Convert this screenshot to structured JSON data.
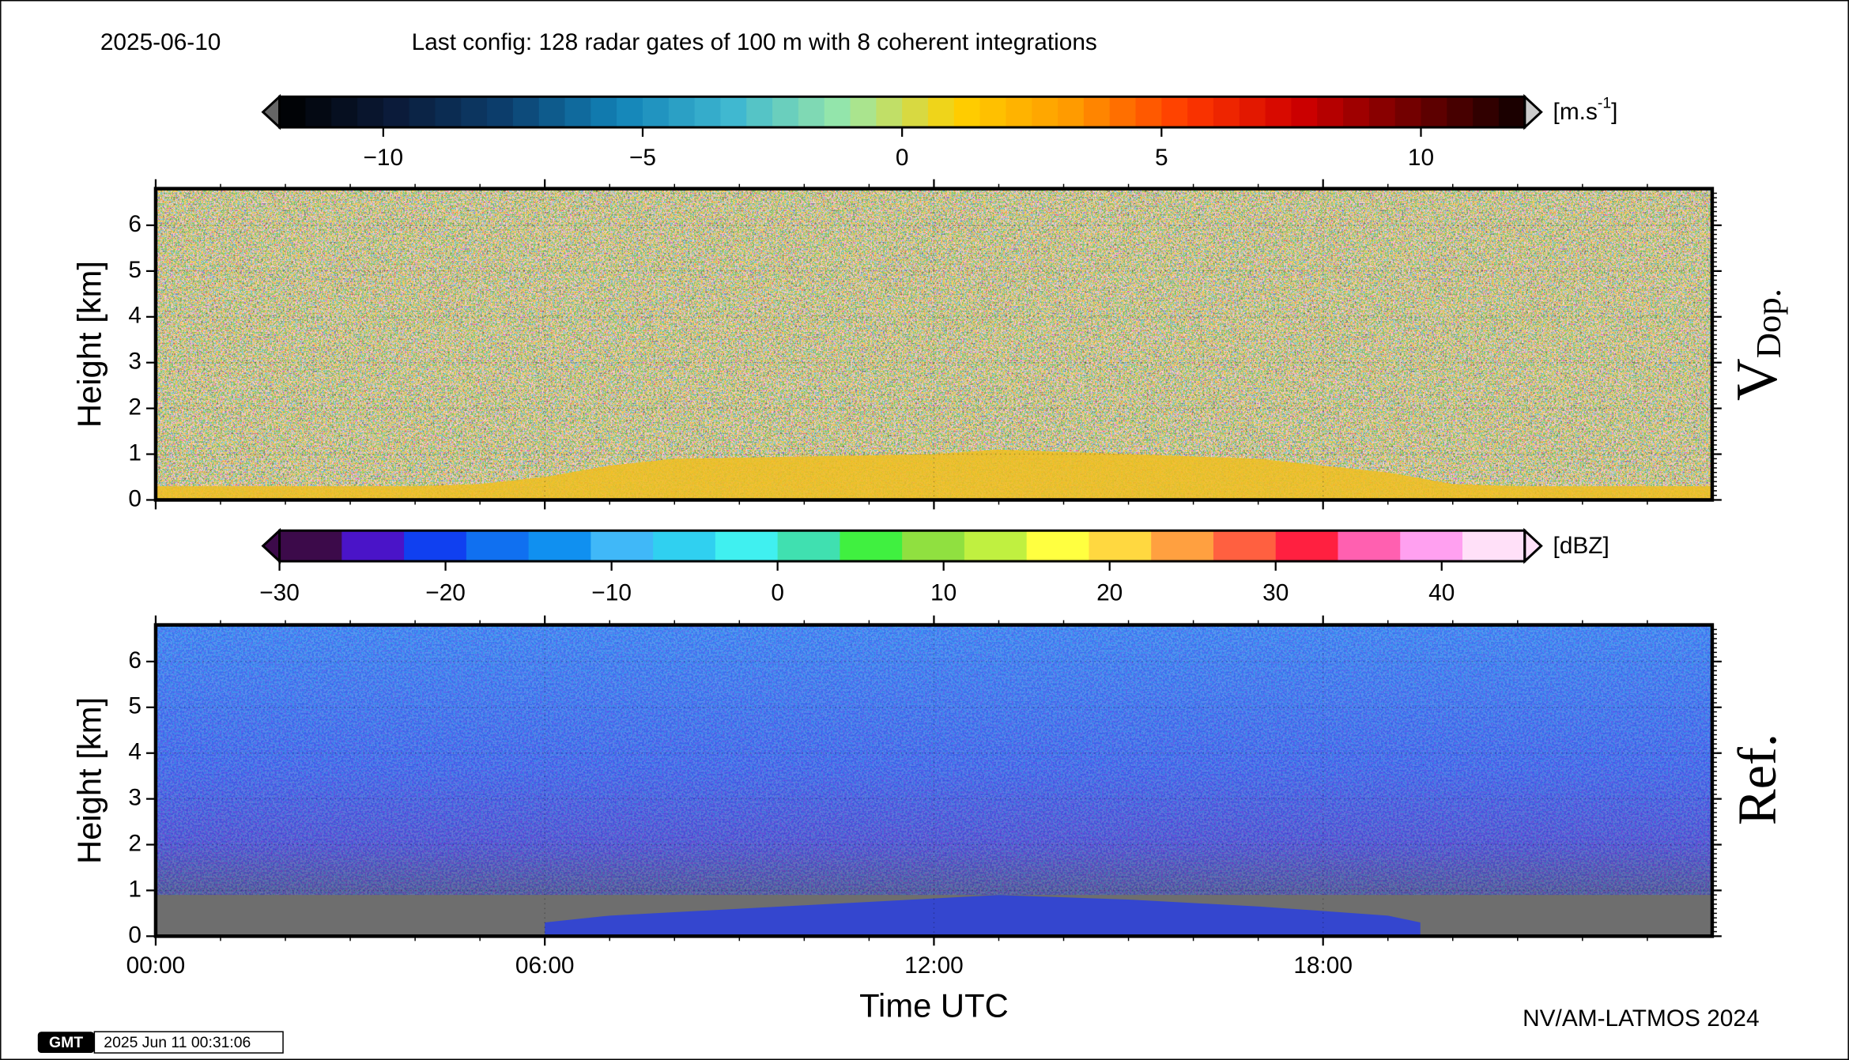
{
  "header": {
    "date": "2025-06-10",
    "config": "Last config: 128 radar gates of 100 m with 8 coherent integrations"
  },
  "chart_data": [
    {
      "type": "heatmap",
      "label": "V",
      "label_sub": "Dop.",
      "ylabel": "Height [km]",
      "ylim": [
        0,
        6.8
      ],
      "yticks": [
        0,
        1,
        2,
        3,
        4,
        5,
        6
      ],
      "xlim": [
        0,
        24
      ],
      "colorbar": {
        "unit": "[m.s",
        "unit_sup": "-1",
        "unit_end": "]",
        "lim": [
          -12,
          12
        ],
        "steps": 48,
        "colors": [
          "#000000",
          "#0b1a38",
          "#0c3f6e",
          "#1283b8",
          "#3fb8d0",
          "#9ae8a8",
          "#ffd000",
          "#ff9a00",
          "#ff3a00",
          "#d00000",
          "#700000",
          "#100000"
        ],
        "ticks": [
          {
            "value": -10,
            "label": "−10"
          },
          {
            "value": -5,
            "label": "−5"
          },
          0,
          5,
          10
        ]
      },
      "layer": {
        "color": "#f0c020",
        "x": [
          0,
          4,
          5,
          6,
          7,
          8,
          10,
          12,
          13,
          15,
          17,
          19,
          20,
          21,
          24
        ],
        "top": [
          0.3,
          0.3,
          0.35,
          0.5,
          0.75,
          0.9,
          0.95,
          1.0,
          1.1,
          1.0,
          0.9,
          0.6,
          0.35,
          0.3,
          0.3
        ]
      }
    },
    {
      "type": "heatmap",
      "label": "Ref.",
      "ylabel": "Height [km]",
      "ylim": [
        0,
        6.8
      ],
      "yticks": [
        0,
        1,
        2,
        3,
        4,
        5,
        6
      ],
      "xlim": [
        0,
        24
      ],
      "xticks": [
        {
          "value": 0,
          "label": "00:00"
        },
        {
          "value": 6,
          "label": "06:00"
        },
        {
          "value": 12,
          "label": "12:00"
        },
        {
          "value": 18,
          "label": "18:00"
        }
      ],
      "xlabel": "Time UTC",
      "colorbar": {
        "unit": "[dBZ]",
        "lim": [
          -30,
          45
        ],
        "colors": [
          "#3c0a4a",
          "#4a14c8",
          "#1040f0",
          "#1070f0",
          "#1090f0",
          "#40b8f8",
          "#30d0f0",
          "#40f0f0",
          "#40e0b0",
          "#40f040",
          "#90e040",
          "#c0f040",
          "#ffff40",
          "#ffd840",
          "#ffa040",
          "#ff6040",
          "#ff2040",
          "#ff60b0",
          "#ffa0f0",
          "#ffe0f8"
        ],
        "ticks": [
          {
            "value": -30,
            "label": "−30"
          },
          {
            "value": -20,
            "label": "−20"
          },
          {
            "value": -10,
            "label": "−10"
          },
          0,
          10,
          20,
          30,
          40
        ]
      },
      "layer": {
        "color": "#2a40e0",
        "x": [
          6,
          7,
          9,
          11,
          13,
          15,
          17,
          19,
          19.5
        ],
        "top": [
          0.3,
          0.45,
          0.6,
          0.75,
          0.9,
          0.8,
          0.65,
          0.45,
          0.3
        ]
      }
    }
  ],
  "credit": "NV/AM-LATMOS 2024",
  "gmt": {
    "logo": "GMT",
    "stamp": "2025 Jun 11 00:31:06"
  }
}
